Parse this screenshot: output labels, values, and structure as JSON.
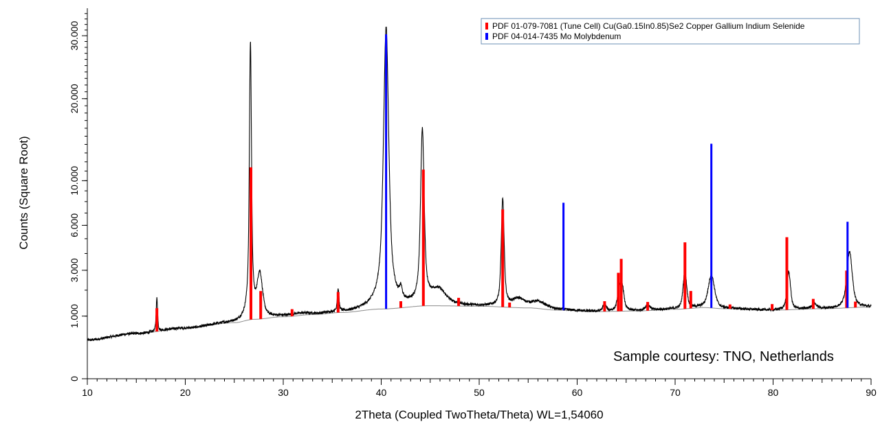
{
  "chart_data": {
    "type": "line",
    "xlabel": "2Theta (Coupled TwoTheta/Theta) WL=1,54060",
    "ylabel": "Counts (Square Root)",
    "y_scale": "sqrt",
    "xlim": [
      10,
      90
    ],
    "ylim": [
      0,
      35000
    ],
    "x_ticks": [
      10,
      20,
      30,
      40,
      50,
      60,
      70,
      80,
      90
    ],
    "y_ticks": [
      0,
      1000,
      3000,
      6000,
      10000,
      20000,
      30000
    ],
    "y_tick_labels": [
      "0",
      "1.000",
      "3.000",
      "6.000",
      "10.000",
      "20.000",
      "30.000"
    ],
    "annotation": "Sample courtesy: TNO, Netherlands",
    "colors": {
      "measured": "#000000",
      "background": "#8a8a8a",
      "cigs": "#ff0000",
      "mo": "#0000ff"
    },
    "legend_position": "top-right",
    "measured_peaks": [
      {
        "x": 17.1,
        "y": 1650,
        "w": 0.08
      },
      {
        "x": 26.65,
        "y": 29000,
        "w": 0.1
      },
      {
        "x": 27.6,
        "y": 2800,
        "w": 0.3
      },
      {
        "x": 31.6,
        "y": 1070,
        "w": 1.2
      },
      {
        "x": 35.6,
        "y": 2000,
        "w": 0.1
      },
      {
        "x": 40.5,
        "y": 31500,
        "w": 0.25
      },
      {
        "x": 42.0,
        "y": 1750,
        "w": 0.15
      },
      {
        "x": 44.2,
        "y": 15800,
        "w": 0.18
      },
      {
        "x": 45.8,
        "y": 2000,
        "w": 0.9
      },
      {
        "x": 47.9,
        "y": 1450,
        "w": 0.1
      },
      {
        "x": 52.4,
        "y": 8200,
        "w": 0.15
      },
      {
        "x": 54.0,
        "y": 1600,
        "w": 0.7
      },
      {
        "x": 56.0,
        "y": 1500,
        "w": 1.0
      },
      {
        "x": 62.8,
        "y": 1400,
        "w": 0.2
      },
      {
        "x": 64.3,
        "y": 2000,
        "w": 0.2
      },
      {
        "x": 64.6,
        "y": 2100,
        "w": 0.2
      },
      {
        "x": 67.2,
        "y": 1380,
        "w": 0.3
      },
      {
        "x": 71.0,
        "y": 2950,
        "w": 0.2
      },
      {
        "x": 73.7,
        "y": 2750,
        "w": 0.35
      },
      {
        "x": 81.6,
        "y": 2900,
        "w": 0.2
      },
      {
        "x": 84.2,
        "y": 1430,
        "w": 0.3
      },
      {
        "x": 87.8,
        "y": 4100,
        "w": 0.3
      }
    ],
    "background_curve": {
      "x": [
        10,
        15,
        20,
        25,
        27,
        30,
        33,
        36,
        40,
        45,
        50,
        55,
        58,
        62,
        66,
        70,
        73,
        75,
        80,
        85,
        90
      ],
      "y": [
        380,
        520,
        650,
        800,
        900,
        980,
        1050,
        1120,
        1240,
        1360,
        1340,
        1280,
        1200,
        1150,
        1170,
        1230,
        1290,
        1250,
        1200,
        1250,
        1310
      ]
    },
    "series": [
      {
        "name": "PDF 01-079-7081 (Tune Cell) Cu(Ga0.15In0.85)Se2 Copper Gallium Indium Selenide",
        "type": "stick",
        "sticks": [
          {
            "x": 17.1,
            "y": 700
          },
          {
            "x": 26.7,
            "y": 10500
          },
          {
            "x": 27.7,
            "y": 1050
          },
          {
            "x": 30.9,
            "y": 240
          },
          {
            "x": 35.6,
            "y": 800
          },
          {
            "x": 42.0,
            "y": 250
          },
          {
            "x": 44.3,
            "y": 9800
          },
          {
            "x": 47.9,
            "y": 320
          },
          {
            "x": 52.4,
            "y": 6000
          },
          {
            "x": 53.1,
            "y": 180
          },
          {
            "x": 62.8,
            "y": 380
          },
          {
            "x": 64.2,
            "y": 1700
          },
          {
            "x": 64.5,
            "y": 2500
          },
          {
            "x": 67.2,
            "y": 320
          },
          {
            "x": 71.0,
            "y": 3500
          },
          {
            "x": 71.6,
            "y": 700
          },
          {
            "x": 75.6,
            "y": 160
          },
          {
            "x": 79.9,
            "y": 220
          },
          {
            "x": 81.4,
            "y": 3900
          },
          {
            "x": 84.1,
            "y": 380
          },
          {
            "x": 87.5,
            "y": 1700
          },
          {
            "x": 88.4,
            "y": 220
          }
        ]
      },
      {
        "name": "PDF 04-014-7435 Mo Molybdenum",
        "type": "stick",
        "sticks": [
          {
            "x": 40.5,
            "y": 29000
          },
          {
            "x": 58.6,
            "y": 6700
          },
          {
            "x": 73.7,
            "y": 12800
          },
          {
            "x": 87.6,
            "y": 5000
          }
        ]
      }
    ]
  }
}
